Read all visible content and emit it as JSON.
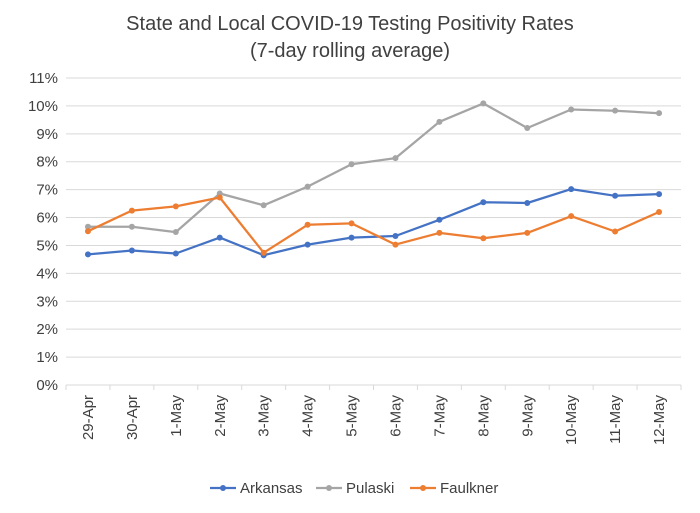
{
  "chart_data": {
    "type": "line",
    "title": "State and Local COVID-19 Testing Positivity Rates",
    "subtitle": "(7-day rolling average)",
    "xlabel": "",
    "ylabel": "",
    "ylim": [
      0,
      11
    ],
    "y_ticks": [
      "0%",
      "1%",
      "2%",
      "3%",
      "4%",
      "5%",
      "6%",
      "7%",
      "8%",
      "9%",
      "10%",
      "11%"
    ],
    "categories": [
      "29-Apr",
      "30-Apr",
      "1-May",
      "2-May",
      "3-May",
      "4-May",
      "5-May",
      "6-May",
      "7-May",
      "8-May",
      "9-May",
      "10-May",
      "11-May",
      "12-May"
    ],
    "series": [
      {
        "name": "Arkansas",
        "color": "#4472c4",
        "values": [
          4.68,
          4.82,
          4.71,
          5.28,
          4.65,
          5.03,
          5.28,
          5.34,
          5.92,
          6.55,
          6.52,
          7.02,
          6.78,
          6.84
        ]
      },
      {
        "name": "Pulaski",
        "color": "#a5a5a5",
        "values": [
          5.67,
          5.67,
          5.48,
          6.86,
          6.44,
          7.11,
          7.91,
          8.13,
          9.43,
          10.09,
          9.21,
          9.87,
          9.83,
          9.74
        ]
      },
      {
        "name": "Faulkner",
        "color": "#ed7d31",
        "values": [
          5.51,
          6.25,
          6.4,
          6.72,
          4.74,
          5.74,
          5.79,
          5.03,
          5.45,
          5.26,
          5.45,
          6.05,
          5.5,
          6.2
        ]
      }
    ],
    "grid": true,
    "legend_position": "bottom"
  }
}
